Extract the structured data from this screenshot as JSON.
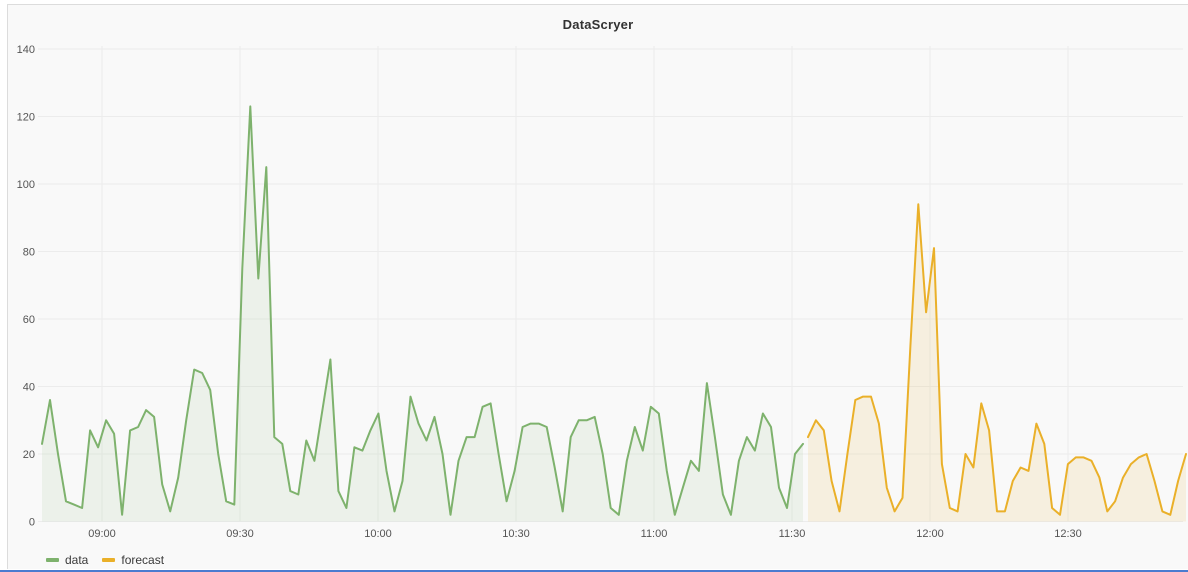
{
  "panel": {
    "title": "DataScryer"
  },
  "colors": {
    "panel_background": "#f9f9f9",
    "grid": "#ececec",
    "axis_text": "#545454",
    "title_text": "#323232",
    "data_series": "#7eb26d",
    "forecast_series": "#eab029",
    "window_bottom_edge": "#4b7bd0"
  },
  "legend": {
    "items": [
      {
        "label": "data",
        "color": "#7eb26d"
      },
      {
        "label": "forecast",
        "color": "#eab029"
      }
    ]
  },
  "chart_data": {
    "type": "line",
    "title": "DataScryer",
    "xlabel": "",
    "ylabel": "",
    "ylim": [
      0,
      140
    ],
    "yticks": [
      0,
      20,
      40,
      60,
      80,
      100,
      120,
      140
    ],
    "xticks": [
      "09:00",
      "09:30",
      "10:00",
      "10:30",
      "11:00",
      "11:30",
      "12:00",
      "12:30"
    ],
    "x_tick_interval": "30 minutes",
    "grid": true,
    "legend_position": "bottom-left",
    "series": [
      {
        "name": "data",
        "color": "#7eb26d",
        "fill_opacity": 0.1,
        "time_start": "08:47",
        "time_end": "11:32",
        "values": [
          23,
          36,
          20,
          6,
          5,
          4,
          27,
          22,
          30,
          26,
          2,
          27,
          28,
          33,
          31,
          11,
          3,
          13,
          30,
          45,
          44,
          39,
          20,
          6,
          5,
          75,
          123,
          72,
          105,
          25,
          23,
          9,
          8,
          24,
          18,
          33,
          48,
          9,
          4,
          22,
          21,
          27,
          32,
          15,
          3,
          12,
          37,
          29,
          24,
          31,
          20,
          2,
          18,
          25,
          25,
          34,
          35,
          20,
          6,
          15,
          28,
          29,
          29,
          28,
          16,
          3,
          25,
          30,
          30,
          31,
          20,
          4,
          2,
          18,
          28,
          21,
          34,
          32,
          15,
          2,
          10,
          18,
          15,
          41,
          25,
          8,
          2,
          18,
          25,
          21,
          32,
          28,
          10,
          4,
          20,
          23
        ]
      },
      {
        "name": "forecast",
        "color": "#eab029",
        "fill_opacity": 0.12,
        "time_start": "11:33",
        "time_end": "12:55",
        "values": [
          25,
          30,
          27,
          12,
          3,
          20,
          36,
          37,
          37,
          29,
          10,
          3,
          7,
          52,
          94,
          62,
          81,
          17,
          4,
          3,
          20,
          16,
          35,
          27,
          3,
          3,
          12,
          16,
          15,
          29,
          23,
          4,
          2,
          17,
          19,
          19,
          18,
          13,
          3,
          6,
          13,
          17,
          19,
          20,
          12,
          3,
          2,
          12,
          20
        ]
      }
    ]
  }
}
